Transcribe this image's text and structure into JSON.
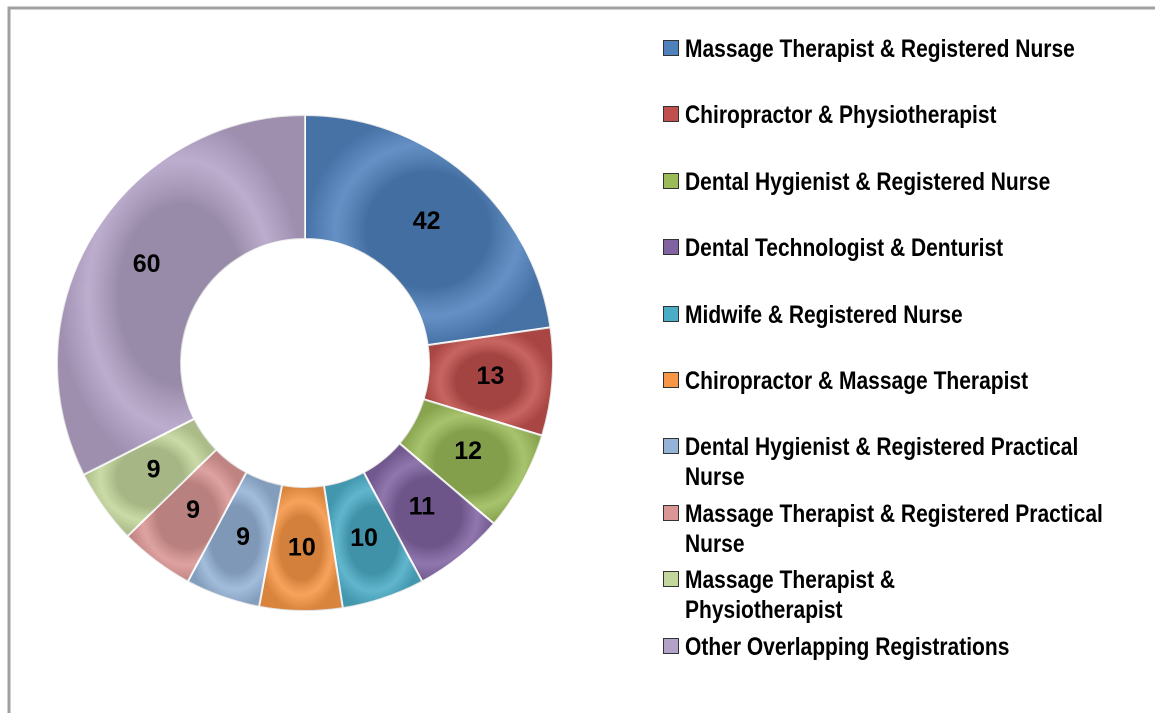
{
  "chart_data": {
    "type": "donut",
    "categories": [
      "Massage Therapist & Registered Nurse",
      "Chiropractor & Physiotherapist",
      "Dental Hygienist  & Registered Nurse",
      "Dental Technologist & Denturist",
      "Midwife & Registered Nurse",
      "Chiropractor & Massage Therapist",
      "Dental Hygienist  & Registered Practical Nurse",
      "Massage Therapist & Registered Practical Nurse",
      "Massage Therapist & Physiotherapist",
      "Other Overlapping Registrations"
    ],
    "values": [
      42,
      13,
      12,
      11,
      10,
      10,
      9,
      9,
      9,
      60
    ],
    "colors": [
      "#4f81bd",
      "#c0504d",
      "#9bbb59",
      "#8064a2",
      "#4bacc6",
      "#f79646",
      "#95b3d7",
      "#d99694",
      "#c3d69b",
      "#b3a2c7"
    ],
    "legend": "right"
  }
}
